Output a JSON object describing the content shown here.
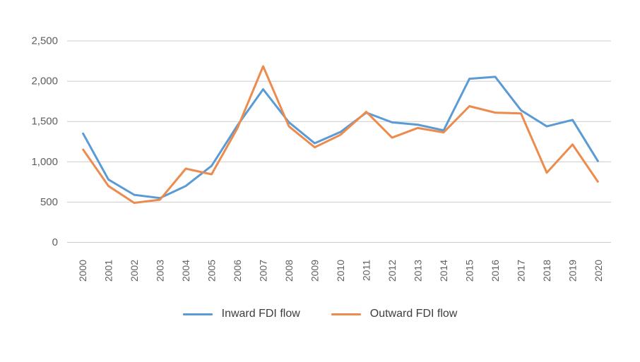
{
  "legend": {
    "items": [
      {
        "label": "Inward FDI flow",
        "color": "#5b9bd5"
      },
      {
        "label": "Outward FDI flow",
        "color": "#ed8b4e"
      }
    ]
  },
  "chart_data": {
    "type": "line",
    "title": "",
    "xlabel": "",
    "ylabel": "",
    "x": [
      2000,
      2001,
      2002,
      2003,
      2004,
      2005,
      2006,
      2007,
      2008,
      2009,
      2010,
      2011,
      2012,
      2013,
      2014,
      2015,
      2016,
      2017,
      2018,
      2019,
      2020
    ],
    "series": [
      {
        "name": "Inward FDI flow",
        "color": "#5b9bd5",
        "values": [
          1360,
          780,
          590,
          550,
          700,
          950,
          1450,
          1900,
          1490,
          1230,
          1370,
          1610,
          1490,
          1460,
          1390,
          2030,
          2055,
          1640,
          1440,
          1520,
          1000
        ]
      },
      {
        "name": "Outward FDI flow",
        "color": "#ed8b4e",
        "values": [
          1160,
          700,
          490,
          530,
          915,
          845,
          1415,
          2185,
          1440,
          1180,
          1335,
          1620,
          1300,
          1420,
          1365,
          1690,
          1610,
          1600,
          865,
          1215,
          745
        ]
      }
    ],
    "ylim": [
      0,
      2500
    ],
    "y_ticks": [
      0,
      500,
      1000,
      1500,
      2000,
      2500
    ],
    "y_tick_labels": [
      "0",
      "500",
      "1,000",
      "1,500",
      "2,000",
      "2,500"
    ],
    "grid": true,
    "legend_position": "bottom"
  },
  "colors": {
    "background": "#ffffff",
    "grid": "#cccccc",
    "axis_text": "#5f5f5f",
    "legend_text": "#3d3d3d"
  }
}
